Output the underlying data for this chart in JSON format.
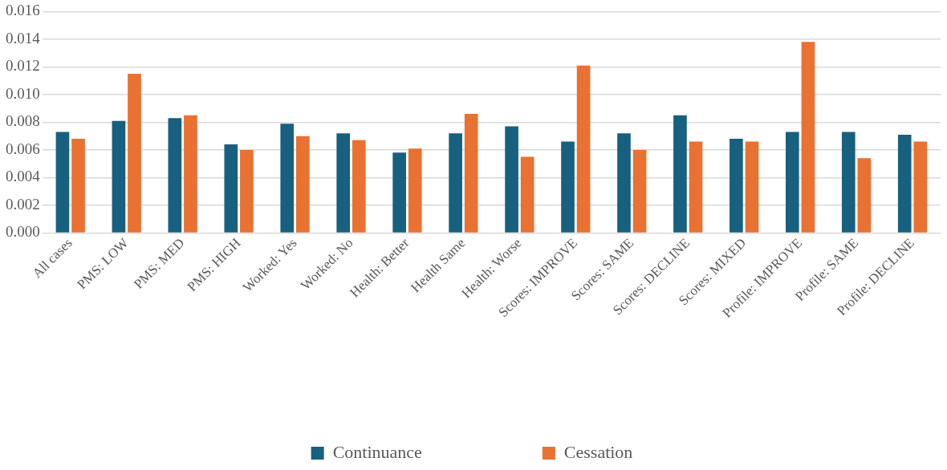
{
  "chart_data": {
    "type": "bar",
    "categories": [
      "All cases",
      "PMS: LOW",
      "PMS: MED",
      "PMS: HIGH",
      "Worked: Yes",
      "Worked: No",
      "Health: Better",
      "Health Same",
      "Health: Worse",
      "Scores: IMPROVE",
      "Scores: SAME",
      "Scores: DECLINE",
      "Scores: MIXED",
      "Profile: IMPROVE",
      "Profile: SAME",
      "Profile: DECLINE"
    ],
    "series": [
      {
        "name": "Continuance",
        "color": "#17607f",
        "values": [
          0.0073,
          0.0081,
          0.0083,
          0.0064,
          0.0079,
          0.0072,
          0.0058,
          0.0072,
          0.0077,
          0.0066,
          0.0072,
          0.0085,
          0.0068,
          0.0073,
          0.0073,
          0.0071
        ]
      },
      {
        "name": "Cessation",
        "color": "#e97132",
        "values": [
          0.0068,
          0.0115,
          0.0085,
          0.006,
          0.007,
          0.0067,
          0.0061,
          0.0086,
          0.0055,
          0.0121,
          0.006,
          0.0066,
          0.0066,
          0.0138,
          0.0054,
          0.0066
        ]
      }
    ],
    "ylim": [
      0,
      0.016
    ],
    "yticks": [
      {
        "value": 0,
        "label": "0.000"
      },
      {
        "value": 0.002,
        "label": "0.002"
      },
      {
        "value": 0.004,
        "label": "0.004"
      },
      {
        "value": 0.006,
        "label": "0.006"
      },
      {
        "value": 0.008,
        "label": "0.008"
      },
      {
        "value": 0.01,
        "label": "0.010"
      },
      {
        "value": 0.012,
        "label": "0.012"
      },
      {
        "value": 0.014,
        "label": "0.014"
      },
      {
        "value": 0.016,
        "label": "0.016"
      }
    ],
    "grid": "y",
    "legend": "bottom"
  }
}
